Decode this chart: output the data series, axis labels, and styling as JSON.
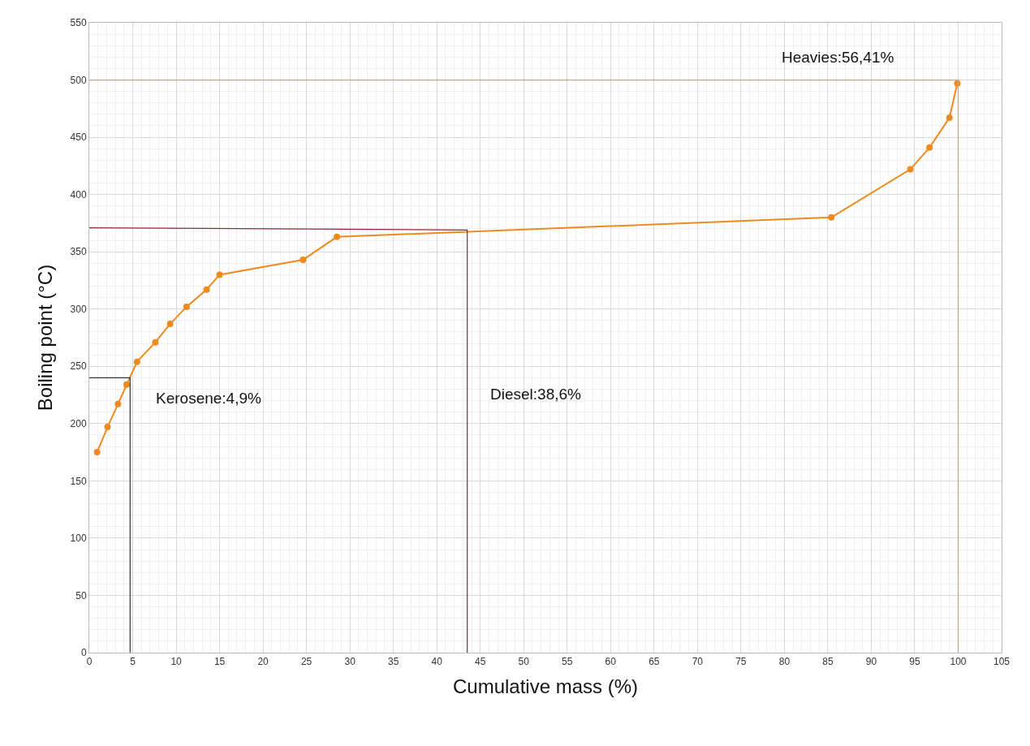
{
  "chart_data": {
    "type": "line",
    "xlabel": "Cumulative mass (%)",
    "ylabel": "Boiling point (°C)",
    "xlim": [
      0,
      105
    ],
    "xticks": [
      0,
      5,
      10,
      15,
      20,
      25,
      30,
      35,
      40,
      45,
      50,
      55,
      60,
      65,
      70,
      75,
      80,
      85,
      90,
      95,
      100,
      105
    ],
    "ylim": [
      0,
      550
    ],
    "yticks": [
      0,
      50,
      100,
      150,
      200,
      250,
      300,
      350,
      400,
      450,
      500,
      550
    ],
    "grid": true,
    "marker": "circle",
    "line_style": "solid",
    "series": [
      {
        "color": "#ee8a1f",
        "x": [
          0.9,
          2.1,
          3.3,
          4.3,
          5.5,
          7.6,
          9.3,
          11.2,
          13.5,
          15.0,
          24.6,
          28.5,
          85.4,
          94.5,
          96.7,
          99.0,
          99.9
        ],
        "values": [
          175,
          197,
          217,
          234,
          254,
          271,
          287,
          302,
          317,
          330,
          343,
          363,
          380,
          422,
          441,
          467,
          497
        ]
      },
      {
        "color": "#333333",
        "marker": "none",
        "x": [
          0,
          4.7,
          4.7
        ],
        "values": [
          240,
          240,
          0
        ]
      },
      {
        "color": "#8b2a3a",
        "marker": "none",
        "x": [
          0,
          43.5,
          43.5
        ],
        "values": [
          371,
          369,
          0
        ]
      },
      {
        "color": "#c8a57a",
        "marker": "none",
        "x": [
          0,
          100,
          100
        ],
        "values": [
          500,
          500,
          0
        ]
      }
    ],
    "annotations": [
      "Kerosene:4,9%",
      "Diesel:38,6%",
      "Heavies:56,41%"
    ]
  }
}
